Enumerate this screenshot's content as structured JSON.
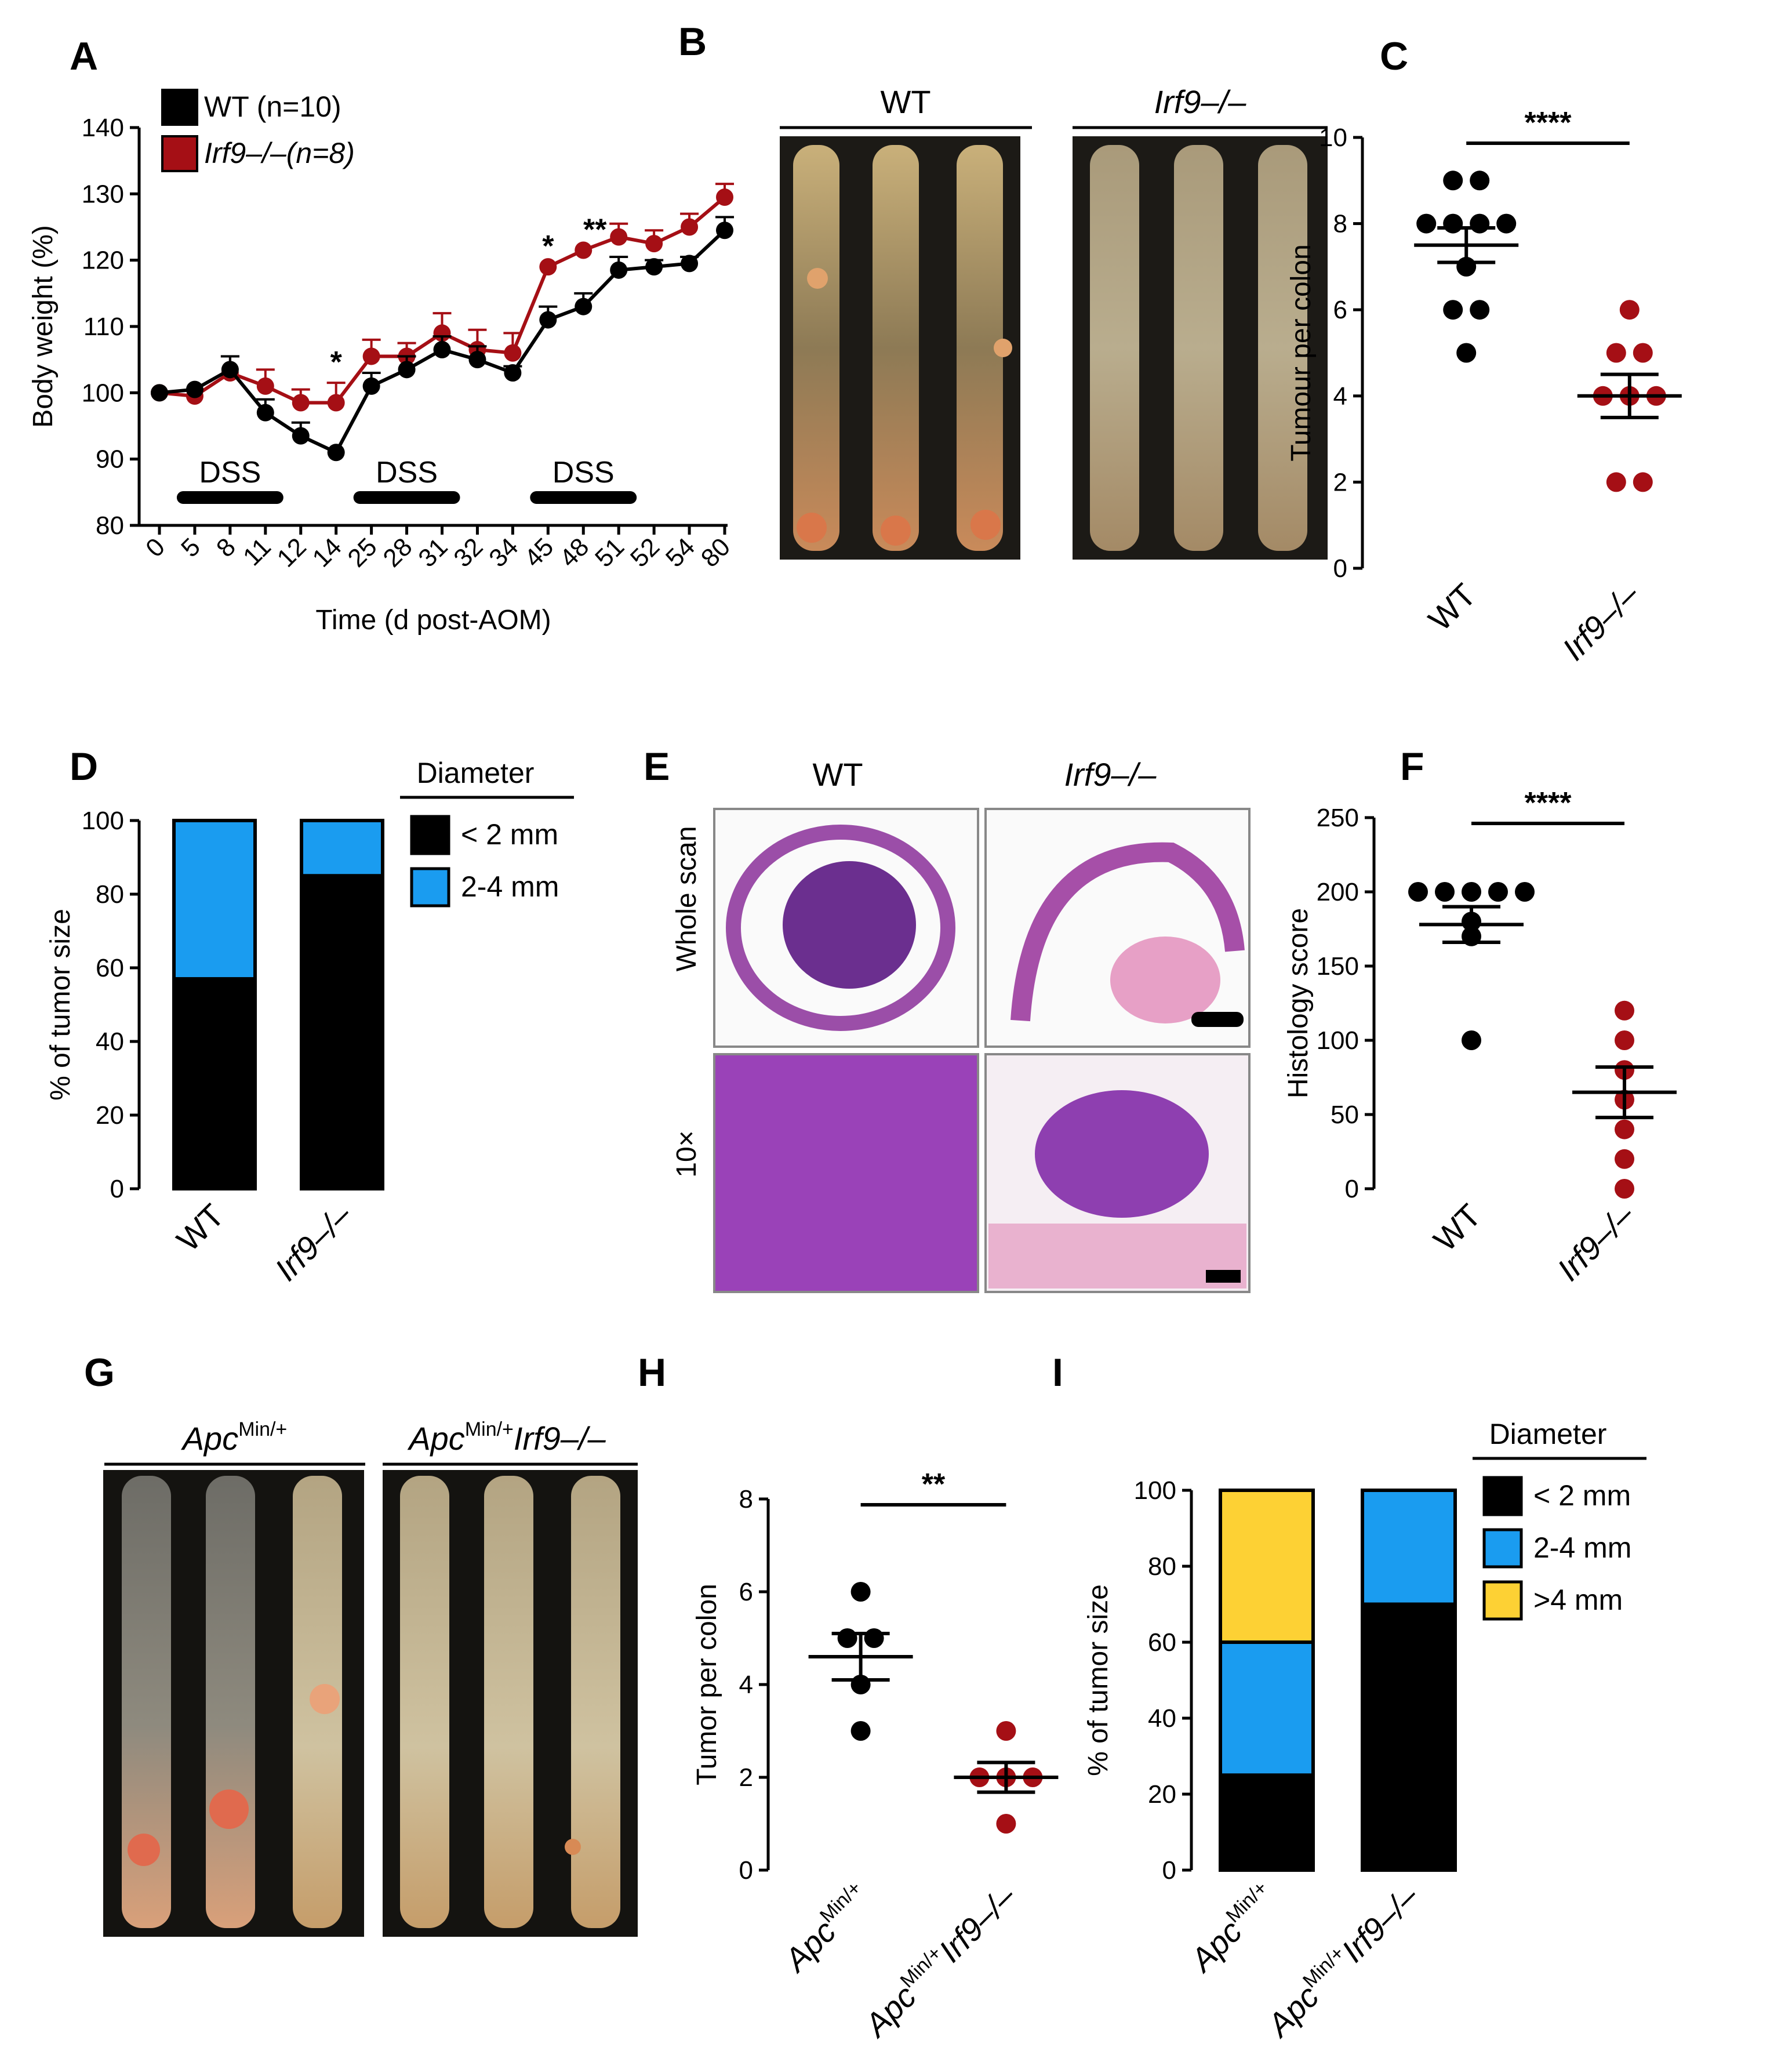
{
  "figure": {
    "panel_letters": [
      "A",
      "B",
      "C",
      "D",
      "E",
      "F",
      "G",
      "H",
      "I"
    ],
    "colors": {
      "wt": "#000000",
      "ko": "#a50f15",
      "small": "#000000",
      "mid": "#1a9cf0",
      "large": "#fdd134"
    }
  },
  "panelB": {
    "wt_label": "WT",
    "ko_label": "Irf9–/–"
  },
  "panelE": {
    "col_wt": "WT",
    "col_ko": "Irf9–/–",
    "row_whole": "Whole scan",
    "row_10x": "10×"
  },
  "panelG": {
    "label_apc": "Apc",
    "label_apc_sup": "Min/+",
    "label_apcirf_gene": "Irf9–/–"
  },
  "chart_data": [
    {
      "panel": "A",
      "type": "line",
      "title": "",
      "xlabel": "Time (d post-AOM)",
      "ylabel": "Body weight  (%)",
      "ylim": [
        80,
        140
      ],
      "yticks": [
        "80",
        "90",
        "100",
        "110",
        "120",
        "130",
        "140"
      ],
      "categories": [
        "0",
        "5",
        "8",
        "11",
        "12",
        "14",
        "25",
        "28",
        "31",
        "32",
        "34",
        "45",
        "48",
        "51",
        "52",
        "54",
        "80"
      ],
      "series": [
        {
          "name": "WT (n=10)",
          "color": "#000000",
          "values": [
            100,
            100.5,
            103.5,
            97,
            93.5,
            91,
            101,
            103.5,
            106.5,
            105,
            103,
            111,
            113,
            118.5,
            119,
            119.5,
            124.5
          ],
          "errors": [
            0,
            0,
            2,
            2,
            2,
            0,
            2,
            2,
            2,
            2,
            1,
            2,
            2,
            2,
            1,
            1,
            2
          ]
        },
        {
          "name": "Irf9–/–(n=8)",
          "color": "#a50f15",
          "values": [
            100,
            99.5,
            103,
            101,
            98.5,
            98.5,
            105.5,
            105.5,
            109,
            106.5,
            106,
            119,
            121.5,
            123.5,
            122.5,
            125,
            129.5
          ],
          "errors": [
            0,
            0,
            2.5,
            2.5,
            2,
            3,
            2.5,
            2,
            3,
            3,
            3,
            0,
            0,
            2,
            2,
            2,
            2
          ]
        }
      ],
      "annotations": [
        {
          "category": "14",
          "text": "*"
        },
        {
          "category": "45",
          "text": "*"
        },
        {
          "category": "48",
          "text": "**"
        }
      ],
      "treatments": [
        {
          "label": "DSS",
          "from": "5",
          "to": "11"
        },
        {
          "label": "DSS",
          "from": "25",
          "to": "31"
        },
        {
          "label": "DSS",
          "from": "45",
          "to": "51"
        }
      ],
      "legend": [
        "WT (n=10)",
        "Irf9–/–(n=8)"
      ]
    },
    {
      "panel": "C",
      "type": "scatter",
      "ylabel": "Tumour per colon",
      "ylim": [
        0,
        10
      ],
      "yticks": [
        "0",
        "2",
        "4",
        "6",
        "8",
        "10"
      ],
      "categories": [
        "WT",
        "Irf9–/–"
      ],
      "groups": [
        {
          "name": "WT",
          "color": "#000000",
          "values": [
            9,
            9,
            8,
            8,
            8,
            8,
            7,
            6,
            6,
            5
          ],
          "mean": 7.5,
          "sem": 0.4
        },
        {
          "name": "Irf9–/–",
          "color": "#a50f15",
          "values": [
            6,
            5,
            5,
            4,
            4,
            4,
            2,
            2
          ],
          "mean": 4.0,
          "sem": 0.5
        }
      ],
      "significance": "****"
    },
    {
      "panel": "D",
      "type": "bar",
      "ylabel": "% of tumor size",
      "ylim": [
        0,
        100
      ],
      "yticks": [
        "0",
        "20",
        "40",
        "60",
        "80",
        "100"
      ],
      "categories": [
        "WT",
        "Irf9–/–"
      ],
      "series": [
        {
          "name": "< 2 mm",
          "color": "#000000",
          "values": [
            57,
            85
          ]
        },
        {
          "name": "2-4 mm",
          "color": "#1a9cf0",
          "values": [
            43,
            15
          ]
        }
      ],
      "legend_title": "Diameter"
    },
    {
      "panel": "F",
      "type": "scatter",
      "ylabel": "Histology score",
      "ylim": [
        0,
        250
      ],
      "yticks": [
        "0",
        "50",
        "100",
        "150",
        "200",
        "250"
      ],
      "categories": [
        "WT",
        "Irf9–/–"
      ],
      "groups": [
        {
          "name": "WT",
          "color": "#000000",
          "values": [
            200,
            200,
            200,
            200,
            200,
            180,
            170,
            100
          ],
          "mean": 178,
          "sem": 12
        },
        {
          "name": "Irf9–/–",
          "color": "#a50f15",
          "values": [
            120,
            100,
            80,
            60,
            40,
            20,
            0
          ],
          "mean": 65,
          "sem": 17
        }
      ],
      "significance": "****"
    },
    {
      "panel": "H",
      "type": "scatter",
      "ylabel": "Tumor per colon",
      "ylim": [
        0,
        8
      ],
      "yticks": [
        "0",
        "2",
        "4",
        "6",
        "8"
      ],
      "categories": [
        "ApcMin/+",
        "ApcMin/+Irf9–/–"
      ],
      "groups": [
        {
          "name": "ApcMin/+",
          "color": "#000000",
          "values": [
            6,
            5,
            5,
            4,
            3
          ],
          "mean": 4.6,
          "sem": 0.5
        },
        {
          "name": "ApcMin/+Irf9–/–",
          "color": "#a50f15",
          "values": [
            3,
            2,
            2,
            2,
            1
          ],
          "mean": 2.0,
          "sem": 0.32
        }
      ],
      "significance": "**"
    },
    {
      "panel": "I",
      "type": "bar",
      "ylabel": "% of tumor size",
      "ylim": [
        0,
        100
      ],
      "yticks": [
        "0",
        "20",
        "40",
        "60",
        "80",
        "100"
      ],
      "categories": [
        "ApcMin/+",
        "ApcMin/+Irf9–/–"
      ],
      "series": [
        {
          "name": "< 2 mm",
          "color": "#000000",
          "values": [
            25,
            70
          ]
        },
        {
          "name": "2-4 mm",
          "color": "#1a9cf0",
          "values": [
            35,
            30
          ]
        },
        {
          "name": ">4 mm",
          "color": "#fdd134",
          "values": [
            40,
            0
          ]
        }
      ],
      "legend_title": "Diameter"
    }
  ]
}
